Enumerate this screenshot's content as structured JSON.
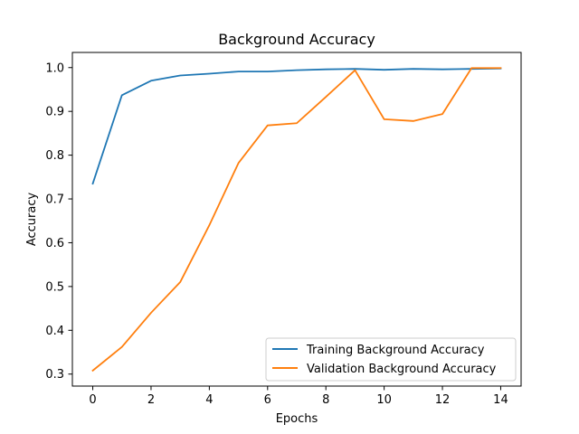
{
  "chart_data": {
    "type": "line",
    "title": "Background Accuracy",
    "xlabel": "Epochs",
    "ylabel": "Accuracy",
    "xlim": [
      -0.7,
      14.7
    ],
    "ylim": [
      0.2726,
      1.0346
    ],
    "x_ticks": [
      0,
      2,
      4,
      6,
      8,
      10,
      12,
      14
    ],
    "y_ticks": [
      0.3,
      0.4,
      0.5,
      0.6,
      0.7,
      0.8,
      0.9,
      1.0
    ],
    "y_tick_labels": [
      "0.3",
      "0.4",
      "0.5",
      "0.6",
      "0.7",
      "0.8",
      "0.9",
      "1.0"
    ],
    "grid": false,
    "legend_position": "lower-right",
    "x": [
      0,
      1,
      2,
      3,
      4,
      5,
      6,
      7,
      8,
      9,
      10,
      11,
      12,
      13,
      14
    ],
    "series": [
      {
        "name": "Training Background Accuracy",
        "color": "#1f77b4",
        "values": [
          0.735,
          0.937,
          0.97,
          0.982,
          0.986,
          0.991,
          0.991,
          0.994,
          0.996,
          0.997,
          0.995,
          0.997,
          0.996,
          0.997,
          0.998
        ]
      },
      {
        "name": "Validation Background Accuracy",
        "color": "#ff7f0e",
        "values": [
          0.308,
          0.362,
          0.44,
          0.51,
          0.64,
          0.782,
          0.868,
          0.873,
          0.933,
          0.994,
          0.882,
          0.878,
          0.894,
          0.999,
          0.999
        ]
      }
    ]
  }
}
